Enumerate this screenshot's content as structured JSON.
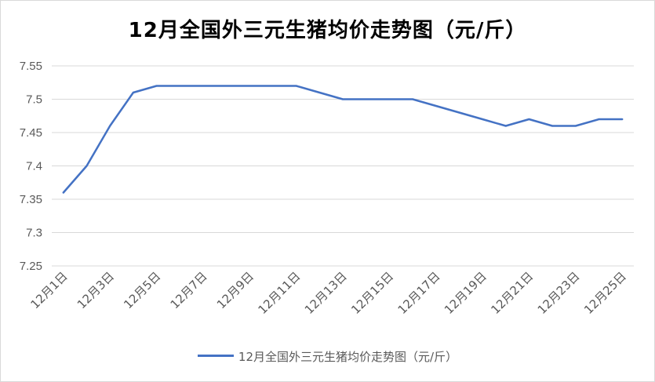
{
  "chart_data": {
    "type": "line",
    "title": "12月全国外三元生猪均价走势图（元/斤）",
    "xlabel": "",
    "ylabel": "",
    "ylim": [
      7.25,
      7.55
    ],
    "yticks": [
      "7.25",
      "7.3",
      "7.35",
      "7.4",
      "7.45",
      "7.5",
      "7.55"
    ],
    "grid": true,
    "legend_position": "bottom",
    "x": [
      "12月1日",
      "12月2日",
      "12月3日",
      "12月4日",
      "12月5日",
      "12月6日",
      "12月7日",
      "12月8日",
      "12月9日",
      "12月10日",
      "12月11日",
      "12月12日",
      "12月13日",
      "12月14日",
      "12月15日",
      "12月16日",
      "12月17日",
      "12月18日",
      "12月19日",
      "12月20日",
      "12月21日",
      "12月22日",
      "12月23日",
      "12月24日",
      "12月25日"
    ],
    "x_tick_labels": [
      "12月1日",
      "12月3日",
      "12月5日",
      "12月7日",
      "12月9日",
      "12月11日",
      "12月13日",
      "12月15日",
      "12月17日",
      "12月19日",
      "12月21日",
      "12月23日",
      "12月25日"
    ],
    "series": [
      {
        "name": "12月全国外三元生猪均价走势图（元/斤）",
        "color": "#4472c4",
        "values": [
          7.36,
          7.4,
          7.46,
          7.51,
          7.52,
          7.52,
          7.52,
          7.52,
          7.52,
          7.52,
          7.52,
          7.51,
          7.5,
          7.5,
          7.5,
          7.5,
          7.49,
          7.48,
          7.47,
          7.46,
          7.47,
          7.46,
          7.46,
          7.47,
          7.47
        ]
      }
    ]
  }
}
